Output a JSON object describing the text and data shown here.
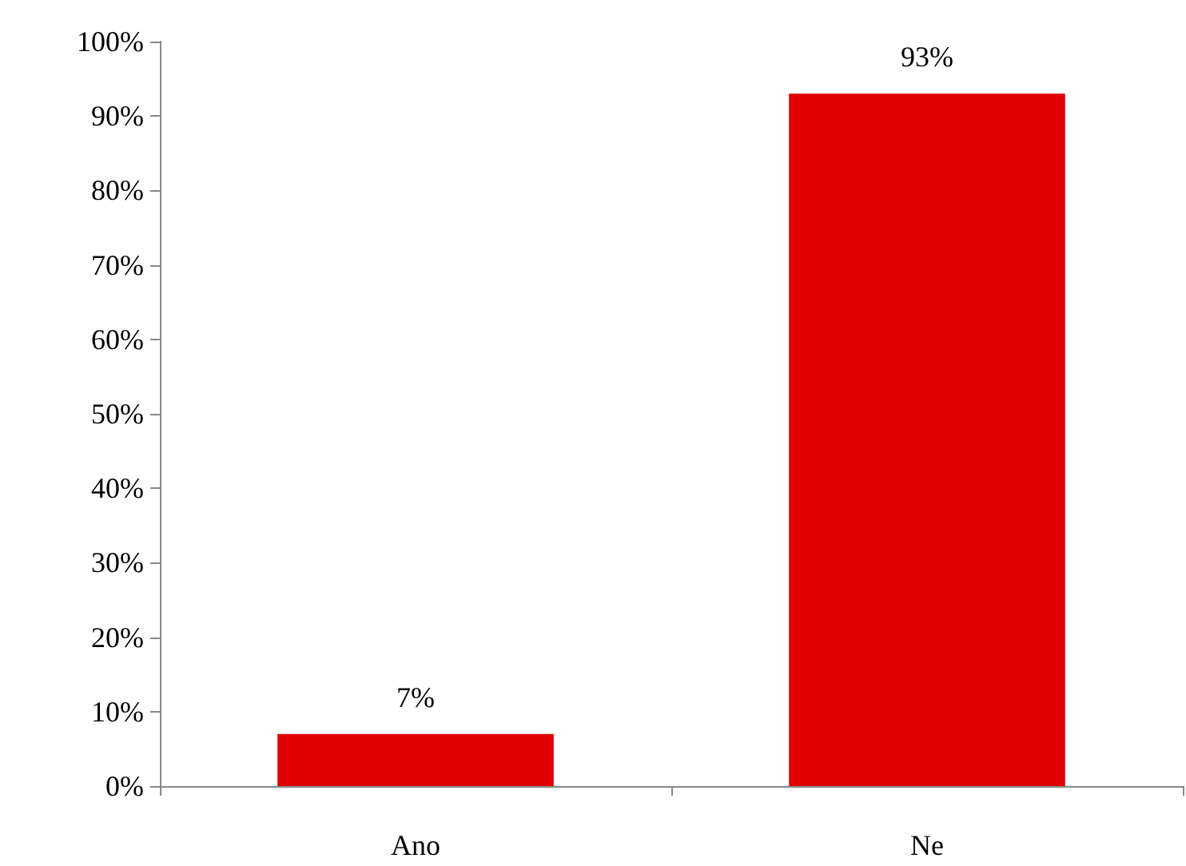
{
  "chart_data": {
    "type": "bar",
    "categories": [
      "Ano",
      "Ne"
    ],
    "values": [
      7,
      93
    ],
    "color": "#e00000",
    "ylim": [
      0,
      100
    ],
    "yticks": [
      {
        "value": 0,
        "label": "0%"
      },
      {
        "value": 10,
        "label": "10%"
      },
      {
        "value": 20,
        "label": "20%"
      },
      {
        "value": 30,
        "label": "30%"
      },
      {
        "value": 40,
        "label": "40%"
      },
      {
        "value": 50,
        "label": "50%"
      },
      {
        "value": 60,
        "label": "60%"
      },
      {
        "value": 70,
        "label": "70%"
      },
      {
        "value": 80,
        "label": "80%"
      },
      {
        "value": 90,
        "label": "90%"
      },
      {
        "value": 100,
        "label": "100%"
      }
    ],
    "value_labels": [
      "7%",
      "93%"
    ]
  }
}
